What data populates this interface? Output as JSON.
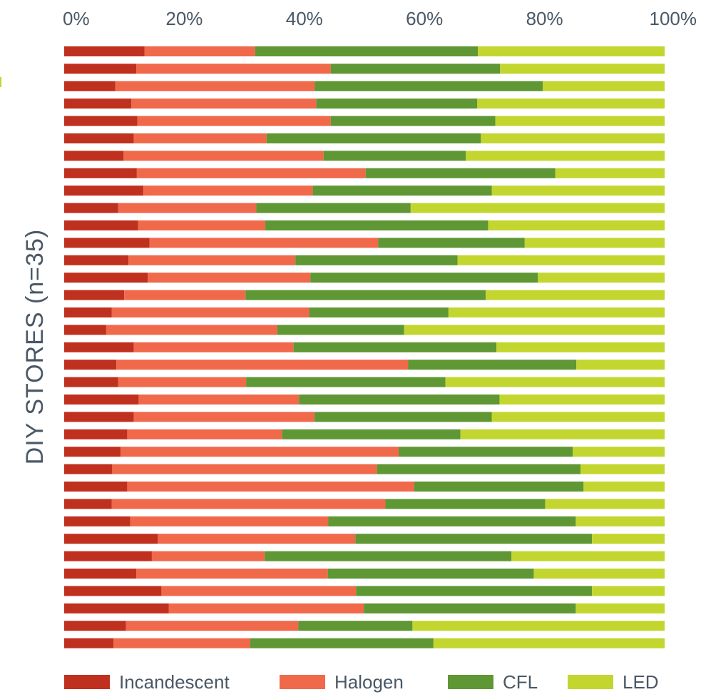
{
  "chart_data": {
    "type": "bar",
    "orientation": "horizontal",
    "stacked": true,
    "ylabel": "DIY STORES (n=35)",
    "xlim": [
      0,
      100
    ],
    "x_ticks": [
      "0%",
      "20%",
      "40%",
      "60%",
      "80%",
      "100%"
    ],
    "x_axis_position": "top",
    "grid": false,
    "legend_position": "bottom",
    "colors": {
      "Incandescent": "#c0301e",
      "Halogen": "#f0694a",
      "CFL": "#5e9733",
      "LED": "#c3d62f"
    },
    "series": [
      {
        "name": "Incandescent",
        "values": [
          13.4,
          12.0,
          8.5,
          11.2,
          12.2,
          11.6,
          9.9,
          12.1,
          13.2,
          9.0,
          12.3,
          14.2,
          10.7,
          13.9,
          10.0,
          7.9,
          7.0,
          11.6,
          8.7,
          9.0,
          12.4,
          11.6,
          10.5,
          9.4,
          8.0,
          10.5,
          7.9,
          11.0,
          15.6,
          14.6,
          12.0,
          16.2,
          17.4,
          10.3,
          8.2
        ]
      },
      {
        "name": "Halogen",
        "values": [
          18.4,
          32.4,
          33.2,
          30.8,
          32.2,
          22.1,
          33.3,
          38.1,
          28.2,
          23.0,
          21.2,
          38.1,
          27.8,
          27.1,
          20.2,
          32.9,
          28.5,
          26.6,
          48.6,
          21.3,
          26.7,
          30.1,
          25.8,
          46.3,
          44.1,
          47.8,
          45.6,
          33.0,
          32.9,
          18.8,
          31.9,
          32.4,
          32.5,
          28.7,
          22.8
        ]
      },
      {
        "name": "CFL",
        "values": [
          37.1,
          28.2,
          38.0,
          26.8,
          27.4,
          35.7,
          23.7,
          31.6,
          29.8,
          25.7,
          37.1,
          24.4,
          27.0,
          37.9,
          40.0,
          23.2,
          21.1,
          33.8,
          28.0,
          33.2,
          33.4,
          29.5,
          29.7,
          29.0,
          33.9,
          28.2,
          26.6,
          41.2,
          39.4,
          41.1,
          34.3,
          39.3,
          35.3,
          19.0,
          30.5
        ]
      },
      {
        "name": "LED",
        "values": [
          31.1,
          27.4,
          20.3,
          31.2,
          28.2,
          30.6,
          33.1,
          18.2,
          28.8,
          42.3,
          29.4,
          23.3,
          34.5,
          21.1,
          29.8,
          36.0,
          43.4,
          28.0,
          14.7,
          36.5,
          27.5,
          28.8,
          34.0,
          15.3,
          14.0,
          13.5,
          19.9,
          14.8,
          12.1,
          25.5,
          21.8,
          12.1,
          14.8,
          42.0,
          38.5
        ]
      }
    ]
  }
}
